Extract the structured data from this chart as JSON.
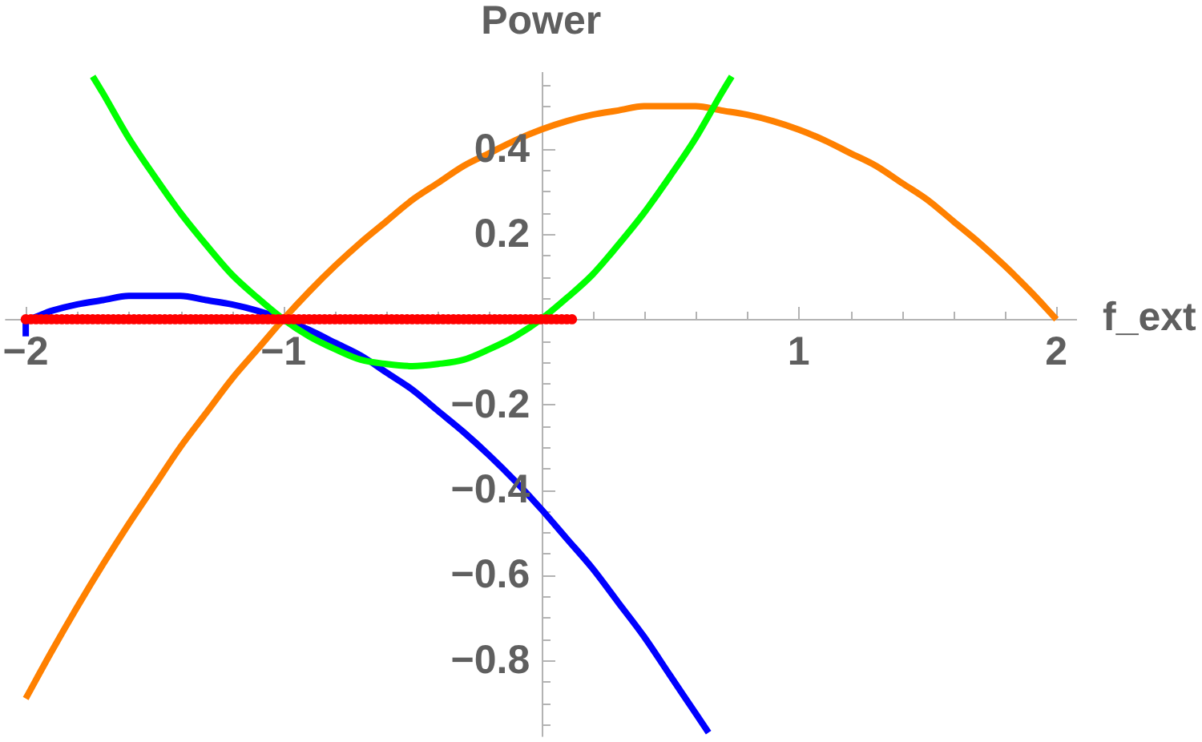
{
  "chart_data": {
    "type": "line",
    "xlabel": "f_ext",
    "ylabel": "Power",
    "xlim": [
      -2.08,
      2.08
    ],
    "ylim": [
      -0.98,
      0.58
    ],
    "xticks": [
      {
        "value": -2,
        "label": "−2"
      },
      {
        "value": -1.8,
        "label": null
      },
      {
        "value": -1.6,
        "label": null
      },
      {
        "value": -1.4,
        "label": null
      },
      {
        "value": -1.2,
        "label": null
      },
      {
        "value": -1,
        "label": "−1"
      },
      {
        "value": -0.8,
        "label": null
      },
      {
        "value": -0.6,
        "label": null
      },
      {
        "value": -0.4,
        "label": null
      },
      {
        "value": -0.2,
        "label": null
      },
      {
        "value": 0.2,
        "label": null
      },
      {
        "value": 0.4,
        "label": null
      },
      {
        "value": 0.6,
        "label": null
      },
      {
        "value": 0.8,
        "label": null
      },
      1,
      {
        "value": 1.2,
        "label": null
      },
      {
        "value": 1.4,
        "label": null
      },
      {
        "value": 1.6,
        "label": null
      },
      {
        "value": 1.8,
        "label": null
      },
      2
    ],
    "yticks": [
      {
        "value": -0.95,
        "label": null
      },
      {
        "value": -0.9,
        "label": null
      },
      {
        "value": -0.85,
        "label": null
      },
      {
        "value": -0.8,
        "label": "−0.8"
      },
      {
        "value": -0.75,
        "label": null
      },
      {
        "value": -0.7,
        "label": null
      },
      {
        "value": -0.65,
        "label": null
      },
      {
        "value": -0.6,
        "label": "−0.6"
      },
      {
        "value": -0.55,
        "label": null
      },
      {
        "value": -0.5,
        "label": null
      },
      {
        "value": -0.45,
        "label": null
      },
      {
        "value": -0.4,
        "label": "−0.4"
      },
      {
        "value": -0.35,
        "label": null
      },
      {
        "value": -0.3,
        "label": null
      },
      {
        "value": -0.25,
        "label": null
      },
      {
        "value": -0.2,
        "label": "−0.2"
      },
      {
        "value": -0.15,
        "label": null
      },
      {
        "value": -0.1,
        "label": null
      },
      {
        "value": -0.05,
        "label": null
      },
      {
        "value": 0.05,
        "label": null
      },
      {
        "value": 0.1,
        "label": null
      },
      {
        "value": 0.15,
        "label": null
      },
      0.2,
      {
        "value": 0.25,
        "label": null
      },
      {
        "value": 0.3,
        "label": null
      },
      {
        "value": 0.35,
        "label": null
      },
      0.4,
      {
        "value": 0.45,
        "label": null
      },
      {
        "value": 0.5,
        "label": null
      },
      {
        "value": 0.55,
        "label": null
      }
    ],
    "series": [
      {
        "color": "#0000ff",
        "x": [
          -2,
          -2,
          -1.9,
          -1.8,
          -1.7,
          -1.6,
          -1.5,
          -1.4,
          -1.3,
          -1.2,
          -1.1,
          -1,
          -0.9,
          -0.8,
          -0.7,
          -0.6,
          -0.5,
          -0.4,
          -0.3,
          -0.2,
          -0.1,
          0,
          0.1,
          0.2,
          0.3,
          0.4,
          0.5,
          0.6,
          0.65
        ],
        "values": [
          -0.04,
          0,
          0.02,
          0.035,
          0.045,
          0.055,
          0.055,
          0.055,
          0.045,
          0.035,
          0.02,
          0,
          -0.025,
          -0.055,
          -0.085,
          -0.125,
          -0.165,
          -0.215,
          -0.265,
          -0.32,
          -0.38,
          -0.445,
          -0.515,
          -0.585,
          -0.665,
          -0.745,
          -0.835,
          -0.925,
          -0.97
        ]
      },
      {
        "color": "#ff8000",
        "x": [
          -2,
          -1.9,
          -1.8,
          -1.7,
          -1.6,
          -1.5,
          -1.4,
          -1.3,
          -1.2,
          -1.1,
          -1,
          -0.9,
          -0.8,
          -0.7,
          -0.6,
          -0.5,
          -0.4,
          -0.3,
          -0.2,
          -0.1,
          0,
          0.1,
          0.2,
          0.3,
          0.4,
          0.5,
          0.6,
          0.7,
          0.8,
          0.9,
          1,
          1.1,
          1.2,
          1.3,
          1.4,
          1.5,
          1.6,
          1.7,
          1.8,
          1.9,
          2
        ],
        "values": [
          -0.89,
          -0.78,
          -0.675,
          -0.575,
          -0.48,
          -0.39,
          -0.3,
          -0.22,
          -0.14,
          -0.07,
          0,
          0.065,
          0.125,
          0.18,
          0.23,
          0.28,
          0.32,
          0.36,
          0.39,
          0.42,
          0.445,
          0.465,
          0.48,
          0.49,
          0.5,
          0.5,
          0.5,
          0.49,
          0.48,
          0.465,
          0.445,
          0.42,
          0.39,
          0.36,
          0.32,
          0.28,
          0.23,
          0.18,
          0.125,
          0.065,
          0
        ]
      },
      {
        "color": "#00ff00",
        "x": [
          -1.74,
          -1.7,
          -1.6,
          -1.5,
          -1.4,
          -1.3,
          -1.2,
          -1.1,
          -1,
          -0.9,
          -0.8,
          -0.7,
          -0.6,
          -0.5,
          -0.4,
          -0.3,
          -0.2,
          -0.1,
          0,
          0.1,
          0.2,
          0.3,
          0.4,
          0.5,
          0.6,
          0.7,
          0.74
        ],
        "values": [
          0.57,
          0.53,
          0.425,
          0.335,
          0.25,
          0.175,
          0.105,
          0.05,
          0,
          -0.04,
          -0.07,
          -0.095,
          -0.105,
          -0.11,
          -0.105,
          -0.095,
          -0.07,
          -0.04,
          0,
          0.05,
          0.105,
          0.175,
          0.25,
          0.335,
          0.425,
          0.53,
          0.57
        ]
      },
      {
        "type": "scatter",
        "marker": "circle",
        "color": "#ff0000",
        "x": [
          -2,
          -1.98,
          -1.96,
          -1.94,
          -1.92,
          -1.9,
          -1.88,
          -1.86,
          -1.84,
          -1.82,
          -1.8,
          -1.78,
          -1.76,
          -1.74,
          -1.72,
          -1.7,
          -1.68,
          -1.66,
          -1.64,
          -1.62,
          -1.6,
          -1.58,
          -1.56,
          -1.54,
          -1.52,
          -1.5,
          -1.48,
          -1.46,
          -1.44,
          -1.42,
          -1.4,
          -1.38,
          -1.36,
          -1.34,
          -1.32,
          -1.3,
          -1.28,
          -1.26,
          -1.24,
          -1.22,
          -1.2,
          -1.18,
          -1.16,
          -1.14,
          -1.12,
          -1.1,
          -1.08,
          -1.06,
          -1.04,
          -1.02,
          -1,
          -0.98,
          -0.96,
          -0.94,
          -0.92,
          -0.9,
          -0.88,
          -0.86,
          -0.84,
          -0.82,
          -0.8,
          -0.78,
          -0.76,
          -0.74,
          -0.72,
          -0.7,
          -0.68,
          -0.66,
          -0.64,
          -0.62,
          -0.6,
          -0.58,
          -0.56,
          -0.54,
          -0.52,
          -0.5,
          -0.48,
          -0.46,
          -0.44,
          -0.42,
          -0.4,
          -0.38,
          -0.36,
          -0.34,
          -0.32,
          -0.3,
          -0.28,
          -0.26,
          -0.24,
          -0.22,
          -0.2,
          -0.18,
          -0.16,
          -0.14,
          -0.12,
          -0.1,
          -0.08,
          -0.06,
          -0.04,
          -0.02,
          0,
          0.02,
          0.04,
          0.06,
          0.08,
          0.1,
          0.12
        ],
        "values": [
          0,
          0,
          0,
          0,
          0,
          0,
          0,
          0,
          0,
          0,
          0,
          0,
          0,
          0,
          0,
          0,
          0,
          0,
          0,
          0,
          0,
          0,
          0,
          0,
          0,
          0,
          0,
          0,
          0,
          0,
          0,
          0,
          0,
          0,
          0,
          0,
          0,
          0,
          0,
          0,
          0,
          0,
          0,
          0,
          0,
          0,
          0,
          0,
          0,
          0,
          0,
          0,
          0,
          0,
          0,
          0,
          0,
          0,
          0,
          0,
          0,
          0,
          0,
          0,
          0,
          0,
          0,
          0,
          0,
          0,
          0,
          0,
          0,
          0,
          0,
          0,
          0,
          0,
          0,
          0,
          0,
          0,
          0,
          0,
          0,
          0,
          0,
          0,
          0,
          0,
          0,
          0,
          0,
          0,
          0,
          0,
          0,
          0,
          0,
          0,
          0,
          0,
          0,
          0,
          0,
          0,
          0
        ]
      }
    ]
  }
}
